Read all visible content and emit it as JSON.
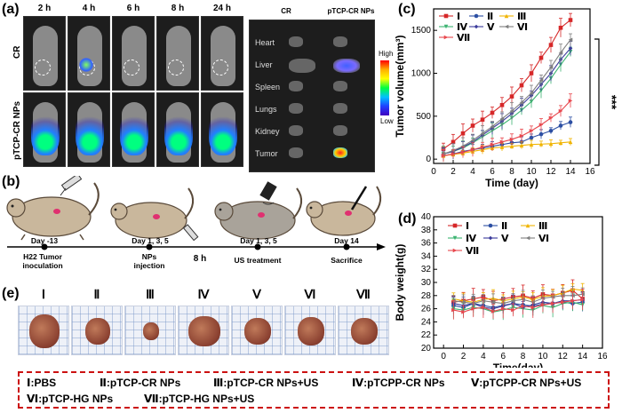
{
  "panel_a": {
    "label": "(a)",
    "time_labels": [
      "2 h",
      "4 h",
      "6 h",
      "8 h",
      "24 h"
    ],
    "row_labels": [
      "CR",
      "pTCP-CR NPs"
    ],
    "exvivo_headers": [
      "CR",
      "pTCP-CR NPs"
    ],
    "organs": [
      "Heart",
      "Liver",
      "Spleen",
      "Lungs",
      "Kidney",
      "Tumor"
    ],
    "colorbar": {
      "high": "High",
      "low": "Low"
    }
  },
  "panel_b": {
    "label": "(b)",
    "timeline": [
      {
        "day": "Day -13",
        "desc": "H22 Tumor inoculation"
      },
      {
        "day": "Day 1, 3, 5",
        "desc": "NPs injection"
      },
      {
        "day": "8 h",
        "desc": ""
      },
      {
        "day": "Day 1, 3, 5",
        "desc": "US treatment"
      },
      {
        "day": "Day 14",
        "desc": "Sacrifice"
      }
    ]
  },
  "panel_e": {
    "label": "(e)",
    "groups": [
      "Ⅰ",
      "Ⅱ",
      "Ⅲ",
      "Ⅳ",
      "Ⅴ",
      "Ⅵ",
      "Ⅶ"
    ]
  },
  "legend_box": {
    "items": [
      "Ⅰ:PBS",
      "Ⅱ:pTCP-CR NPs",
      "Ⅲ:pTCP-CR NPs+US",
      "Ⅳ:pTCPP-CR NPs",
      "Ⅴ:pTCPP-CR NPs+US",
      "Ⅵ:pTCP-HG NPs",
      "Ⅶ:pTCP-HG NPs+US"
    ]
  },
  "colors": {
    "I": "#d62728",
    "II": "#2c4fa3",
    "III": "#f0b400",
    "IV": "#3cb371",
    "V": "#3a3a9a",
    "VI": "#7f7f7f",
    "VII": "#e8474d",
    "legend_border": "#cc1111"
  },
  "chart_data": [
    {
      "panel": "(c)",
      "type": "line",
      "title": "",
      "xlabel": "Time (day)",
      "ylabel": "Tumor volume(mm³)",
      "xlim": [
        0,
        16
      ],
      "ylim": [
        -50,
        1750
      ],
      "xticks": [
        0,
        2,
        4,
        6,
        8,
        10,
        12,
        14,
        16
      ],
      "yticks": [
        0,
        500,
        1000,
        1500
      ],
      "annotation": "***",
      "legend_placement": "top-left",
      "x": [
        1,
        2,
        3,
        4,
        5,
        6,
        7,
        8,
        9,
        10,
        11,
        12,
        13,
        14
      ],
      "series": [
        {
          "name": "Ⅰ",
          "values": [
            120,
            200,
            300,
            390,
            460,
            540,
            630,
            730,
            860,
            1000,
            1180,
            1330,
            1530,
            1620
          ],
          "error": 110
        },
        {
          "name": "Ⅱ",
          "values": [
            40,
            60,
            90,
            110,
            130,
            150,
            170,
            190,
            200,
            250,
            290,
            330,
            390,
            430
          ],
          "error": 60
        },
        {
          "name": "Ⅲ",
          "values": [
            40,
            55,
            70,
            90,
            110,
            130,
            140,
            150,
            160,
            170,
            175,
            180,
            190,
            200
          ],
          "error": 50
        },
        {
          "name": "Ⅳ",
          "values": [
            60,
            90,
            130,
            190,
            260,
            330,
            400,
            480,
            570,
            670,
            800,
            940,
            1100,
            1250
          ],
          "error": 90
        },
        {
          "name": "Ⅴ",
          "values": [
            60,
            90,
            140,
            200,
            280,
            360,
            440,
            530,
            630,
            740,
            870,
            1000,
            1160,
            1290
          ],
          "error": 90
        },
        {
          "name": "Ⅵ",
          "values": [
            60,
            100,
            150,
            220,
            300,
            380,
            470,
            560,
            660,
            770,
            920,
            1070,
            1240,
            1390
          ],
          "error": 100
        },
        {
          "name": "Ⅶ",
          "values": [
            40,
            60,
            80,
            110,
            140,
            170,
            200,
            230,
            270,
            330,
            400,
            480,
            560,
            680
          ],
          "error": 80
        }
      ]
    },
    {
      "panel": "(d)",
      "type": "line",
      "title": "",
      "xlabel": "Time(day)",
      "ylabel": "Body weight(g)",
      "xlim": [
        -1,
        16
      ],
      "ylim": [
        20,
        40
      ],
      "xticks": [
        0,
        2,
        4,
        6,
        8,
        10,
        12,
        14,
        16
      ],
      "yticks": [
        20,
        22,
        24,
        26,
        28,
        30,
        32,
        34,
        36,
        38,
        40
      ],
      "legend_placement": "top-left",
      "x": [
        1,
        2,
        3,
        4,
        5,
        6,
        7,
        8,
        9,
        10,
        11,
        12,
        13,
        14
      ],
      "series": [
        {
          "name": "Ⅰ",
          "values": [
            27,
            27.2,
            27.5,
            27.8,
            27.2,
            27.5,
            27.8,
            28,
            27.6,
            28.2,
            28,
            28.4,
            28.8,
            27.5
          ],
          "error": 1.6
        },
        {
          "name": "Ⅱ",
          "values": [
            26.5,
            26.2,
            26.8,
            26.5,
            26.2,
            26.5,
            26.8,
            26.6,
            26.4,
            26.7,
            26.8,
            27,
            26.8,
            27
          ],
          "error": 1.4
        },
        {
          "name": "Ⅲ",
          "values": [
            27.5,
            27.2,
            27,
            27.4,
            27.6,
            27.2,
            27.5,
            27.8,
            27.4,
            27.9,
            28,
            28.4,
            29,
            28.8
          ],
          "error": 1.3
        },
        {
          "name": "Ⅳ",
          "values": [
            26,
            25.8,
            26.2,
            26,
            25.5,
            25.8,
            26.2,
            26,
            25.8,
            26.5,
            26.2,
            26.8,
            27,
            26.6
          ],
          "error": 1.5
        },
        {
          "name": "Ⅴ",
          "values": [
            26.8,
            26.5,
            26.8,
            26.2,
            26,
            26.4,
            26.8,
            26.2,
            26.6,
            27,
            26.8,
            27.2,
            27.2,
            27.4
          ],
          "error": 1.3
        },
        {
          "name": "Ⅵ",
          "values": [
            27.2,
            27,
            26.8,
            27.2,
            27,
            26.8,
            27.2,
            27.4,
            27,
            27.6,
            27.8,
            28,
            28,
            28.2
          ],
          "error": 1.4
        },
        {
          "name": "Ⅶ",
          "values": [
            25.8,
            25.5,
            26,
            26.2,
            25.6,
            26,
            25.8,
            26.4,
            26.2,
            26.6,
            26.8,
            27,
            27.2,
            27.4
          ],
          "error": 1.6
        }
      ]
    }
  ]
}
